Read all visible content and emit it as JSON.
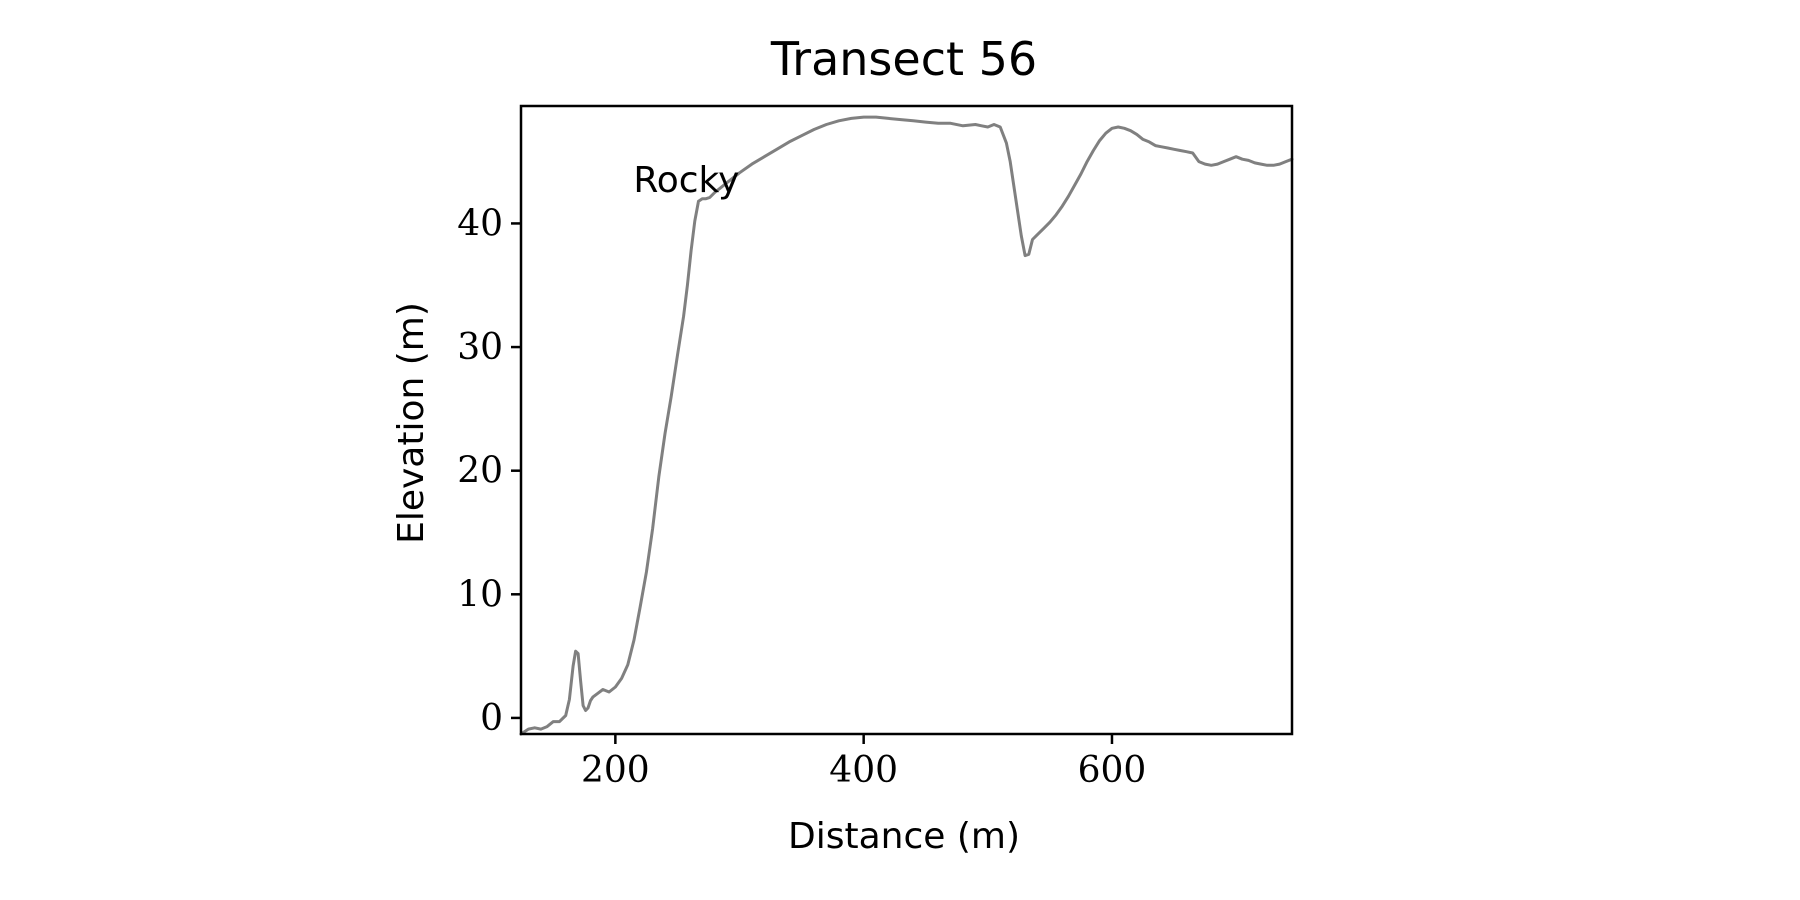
{
  "chart_data": {
    "type": "line",
    "title": "Transect 56",
    "xlabel": "Distance (m)",
    "ylabel": "Elevation (m)",
    "xlim": [
      124,
      745
    ],
    "ylim": [
      -1.3,
      49.5
    ],
    "xticks": [
      200,
      400,
      600
    ],
    "yticks": [
      0,
      10,
      20,
      30,
      40
    ],
    "grid": false,
    "legend": "none",
    "line_color": "#808080",
    "annotations": [
      {
        "text": "Rocky",
        "x": 200,
        "y": 43.5
      }
    ],
    "series": [
      {
        "x": [
          124,
          130,
          135,
          140,
          145,
          150,
          155,
          160,
          163,
          166,
          168,
          170,
          172,
          174,
          176,
          178,
          180,
          182,
          186,
          190,
          195,
          200,
          205,
          210,
          215,
          220,
          225,
          230,
          235,
          240,
          245,
          250,
          255,
          258,
          261,
          264,
          267,
          270,
          273,
          276,
          280,
          285,
          290,
          300,
          310,
          320,
          330,
          340,
          350,
          360,
          370,
          380,
          390,
          400,
          410,
          420,
          430,
          440,
          450,
          460,
          470,
          480,
          490,
          495,
          500,
          505,
          510,
          515,
          518,
          521,
          524,
          527,
          530,
          533,
          536,
          539,
          542,
          545,
          550,
          555,
          560,
          565,
          570,
          575,
          580,
          585,
          590,
          595,
          600,
          605,
          610,
          615,
          620,
          625,
          630,
          635,
          640,
          645,
          650,
          655,
          660,
          665,
          670,
          675,
          680,
          685,
          690,
          695,
          700,
          705,
          710,
          715,
          720,
          725,
          730,
          735,
          740,
          745
        ],
        "y": [
          -1.3,
          -0.9,
          -0.8,
          -0.9,
          -0.7,
          -0.3,
          -0.3,
          0.2,
          1.5,
          4.2,
          5.4,
          5.2,
          3.0,
          1.0,
          0.6,
          0.8,
          1.4,
          1.7,
          2.0,
          2.3,
          2.1,
          2.5,
          3.2,
          4.3,
          6.3,
          9.0,
          11.8,
          15.3,
          19.5,
          23.0,
          26.0,
          29.3,
          32.5,
          35.0,
          37.8,
          40.2,
          41.8,
          42.0,
          42.0,
          42.1,
          42.5,
          42.9,
          43.3,
          44.1,
          44.8,
          45.4,
          46.0,
          46.6,
          47.1,
          47.6,
          48.0,
          48.3,
          48.5,
          48.6,
          48.6,
          48.5,
          48.4,
          48.3,
          48.2,
          48.1,
          48.1,
          47.9,
          48.0,
          47.9,
          47.8,
          48.0,
          47.8,
          46.5,
          45.0,
          43.0,
          41.0,
          39.0,
          37.4,
          37.5,
          38.7,
          39.0,
          39.3,
          39.6,
          40.1,
          40.7,
          41.4,
          42.2,
          43.1,
          44.0,
          45.0,
          45.9,
          46.7,
          47.3,
          47.7,
          47.8,
          47.7,
          47.5,
          47.2,
          46.8,
          46.6,
          46.3,
          46.2,
          46.1,
          46.0,
          45.9,
          45.8,
          45.7,
          45.0,
          44.8,
          44.7,
          44.8,
          45.0,
          45.2,
          45.4,
          45.2,
          45.1,
          44.9,
          44.8,
          44.7,
          44.7,
          44.8,
          45.0,
          45.2
        ]
      }
    ]
  }
}
